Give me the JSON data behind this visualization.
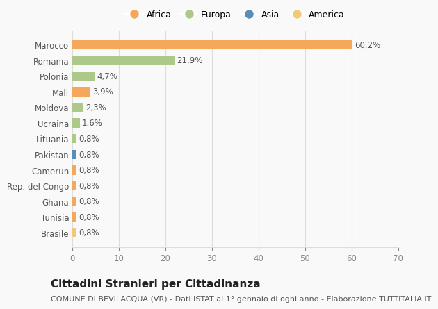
{
  "categories": [
    "Brasile",
    "Tunisia",
    "Ghana",
    "Rep. del Congo",
    "Camerun",
    "Pakistan",
    "Lituania",
    "Ucraina",
    "Moldova",
    "Mali",
    "Polonia",
    "Romania",
    "Marocco"
  ],
  "values": [
    0.8,
    0.8,
    0.8,
    0.8,
    0.8,
    0.8,
    0.8,
    1.6,
    2.3,
    3.9,
    4.7,
    21.9,
    60.2
  ],
  "labels": [
    "0,8%",
    "0,8%",
    "0,8%",
    "0,8%",
    "0,8%",
    "0,8%",
    "0,8%",
    "1,6%",
    "2,3%",
    "3,9%",
    "4,7%",
    "21,9%",
    "60,2%"
  ],
  "colors": [
    "#f0c97a",
    "#f5a85a",
    "#f5a85a",
    "#f5a85a",
    "#f5a85a",
    "#5b8db8",
    "#adc98a",
    "#adc98a",
    "#adc98a",
    "#f5a85a",
    "#adc98a",
    "#adc98a",
    "#f5a85a"
  ],
  "legend": [
    {
      "label": "Africa",
      "color": "#f5a85a"
    },
    {
      "label": "Europa",
      "color": "#adc98a"
    },
    {
      "label": "Asia",
      "color": "#5b8db8"
    },
    {
      "label": "America",
      "color": "#f0c97a"
    }
  ],
  "xlim": [
    0,
    70
  ],
  "xticks": [
    0,
    10,
    20,
    30,
    40,
    50,
    60,
    70
  ],
  "title": "Cittadini Stranieri per Cittadinanza",
  "subtitle": "COMUNE DI BEVILACQUA (VR) - Dati ISTAT al 1° gennaio di ogni anno - Elaborazione TUTTITALIA.IT",
  "bg_color": "#f9f9f9",
  "grid_color": "#dddddd",
  "bar_height": 0.6,
  "label_fontsize": 8.5,
  "tick_fontsize": 8.5,
  "title_fontsize": 11,
  "subtitle_fontsize": 8
}
